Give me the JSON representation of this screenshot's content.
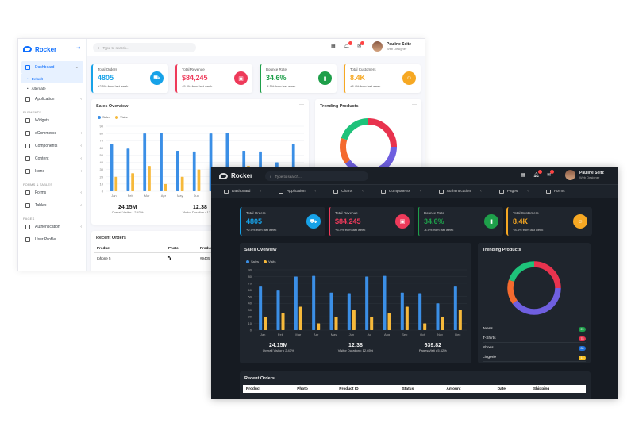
{
  "brand": "Rocker",
  "search_placeholder": "Type to search...",
  "user": {
    "name": "Pauline Seitz",
    "role_light": "Web Designer",
    "role_dark": "Web Designer"
  },
  "light": {
    "sidebar": {
      "dashboard": "Dashboard",
      "default": "Default",
      "alternate": "Alternate",
      "application": "Application",
      "cat_elements": "ELEMENTS",
      "widgets": "Widgets",
      "ecommerce": "eCommerce",
      "components": "Components",
      "content": "Content",
      "icons": "Icons",
      "cat_forms": "FORMS & TABLES",
      "forms": "Forms",
      "tables": "Tables",
      "cat_pages": "PAGES",
      "authentication": "Authentication",
      "user_profile": "User Profile"
    },
    "recent_orders_title": "Recent Orders",
    "orders_cols": [
      "Product",
      "Photo",
      "Product"
    ],
    "order_row": {
      "product": "Iphone 5",
      "id": "#9405"
    }
  },
  "cards": [
    {
      "title": "Total Orders",
      "value": "4805",
      "sub": "+2.5% from last week",
      "color": "#17a2e8",
      "icon": "cart-icon"
    },
    {
      "title": "Total Revenue",
      "value": "$84,245",
      "sub": "+5.4% from last week",
      "color": "#ee3a5a",
      "icon": "wallet-icon"
    },
    {
      "title": "Bounce Rate",
      "value": "34.6%",
      "sub": "-4.5% from last week",
      "color": "#1e9f4a",
      "icon": "chart-icon"
    },
    {
      "title": "Total Customers",
      "value": "8.4K",
      "sub": "+8.4% from last week",
      "color": "#f6a823",
      "icon": "users-icon"
    }
  ],
  "sales_title": "Sales Overview",
  "trending_title": "Trending Products",
  "legend": {
    "sales": "Sales",
    "visits": "Visits"
  },
  "stats": [
    {
      "value": "24.15M",
      "label": "Overall Visitor",
      "delta": "2.43%"
    },
    {
      "value": "12:38",
      "label": "Visitor Duration",
      "delta": "12.65%"
    },
    {
      "value": "639.82",
      "label": "Pages/Visit",
      "delta": "5.62%"
    }
  ],
  "dark": {
    "nav": [
      "Dashboard",
      "Application",
      "Charts",
      "Components",
      "Authentication",
      "Pages",
      "Forms"
    ],
    "products": [
      {
        "name": "Jeans",
        "count": "25",
        "color": "#1e9f4a"
      },
      {
        "name": "T-Shirts",
        "count": "78",
        "color": "#e8334e"
      },
      {
        "name": "Shoes",
        "count": "88",
        "color": "#1e6fd9"
      },
      {
        "name": "Lingerie",
        "count": "14",
        "color": "#f6c023"
      }
    ],
    "recent_orders_title": "Recent Orders",
    "orders_cols": [
      "Product",
      "Photo",
      "Product ID",
      "Status",
      "Amount",
      "Date",
      "Shipping"
    ]
  },
  "chart_data": {
    "type": "bar",
    "categories": [
      "Jan",
      "Feb",
      "Mar",
      "Apr",
      "May",
      "Jun",
      "Jul",
      "Aug",
      "Sep",
      "Oct",
      "Nov",
      "Dec"
    ],
    "series": [
      {
        "name": "Sales",
        "values": [
          65,
          59,
          80,
          81,
          56,
          55,
          80,
          81,
          56,
          55,
          40,
          65
        ],
        "color": "#3b8fe6"
      },
      {
        "name": "Visits",
        "values": [
          20,
          25,
          35,
          10,
          20,
          30,
          20,
          25,
          35,
          10,
          20,
          30
        ],
        "color": "#f6b93b"
      }
    ],
    "ylim": [
      0,
      90
    ],
    "yticks": [
      0,
      10,
      20,
      30,
      40,
      50,
      60,
      70,
      80,
      90
    ]
  },
  "donut": {
    "segments": [
      {
        "value": 25,
        "color": "#e8334e"
      },
      {
        "value": 40,
        "color": "#6f5fe0"
      },
      {
        "value": 15,
        "color": "#f46a2e"
      },
      {
        "value": 20,
        "color": "#1ec27a"
      }
    ]
  }
}
